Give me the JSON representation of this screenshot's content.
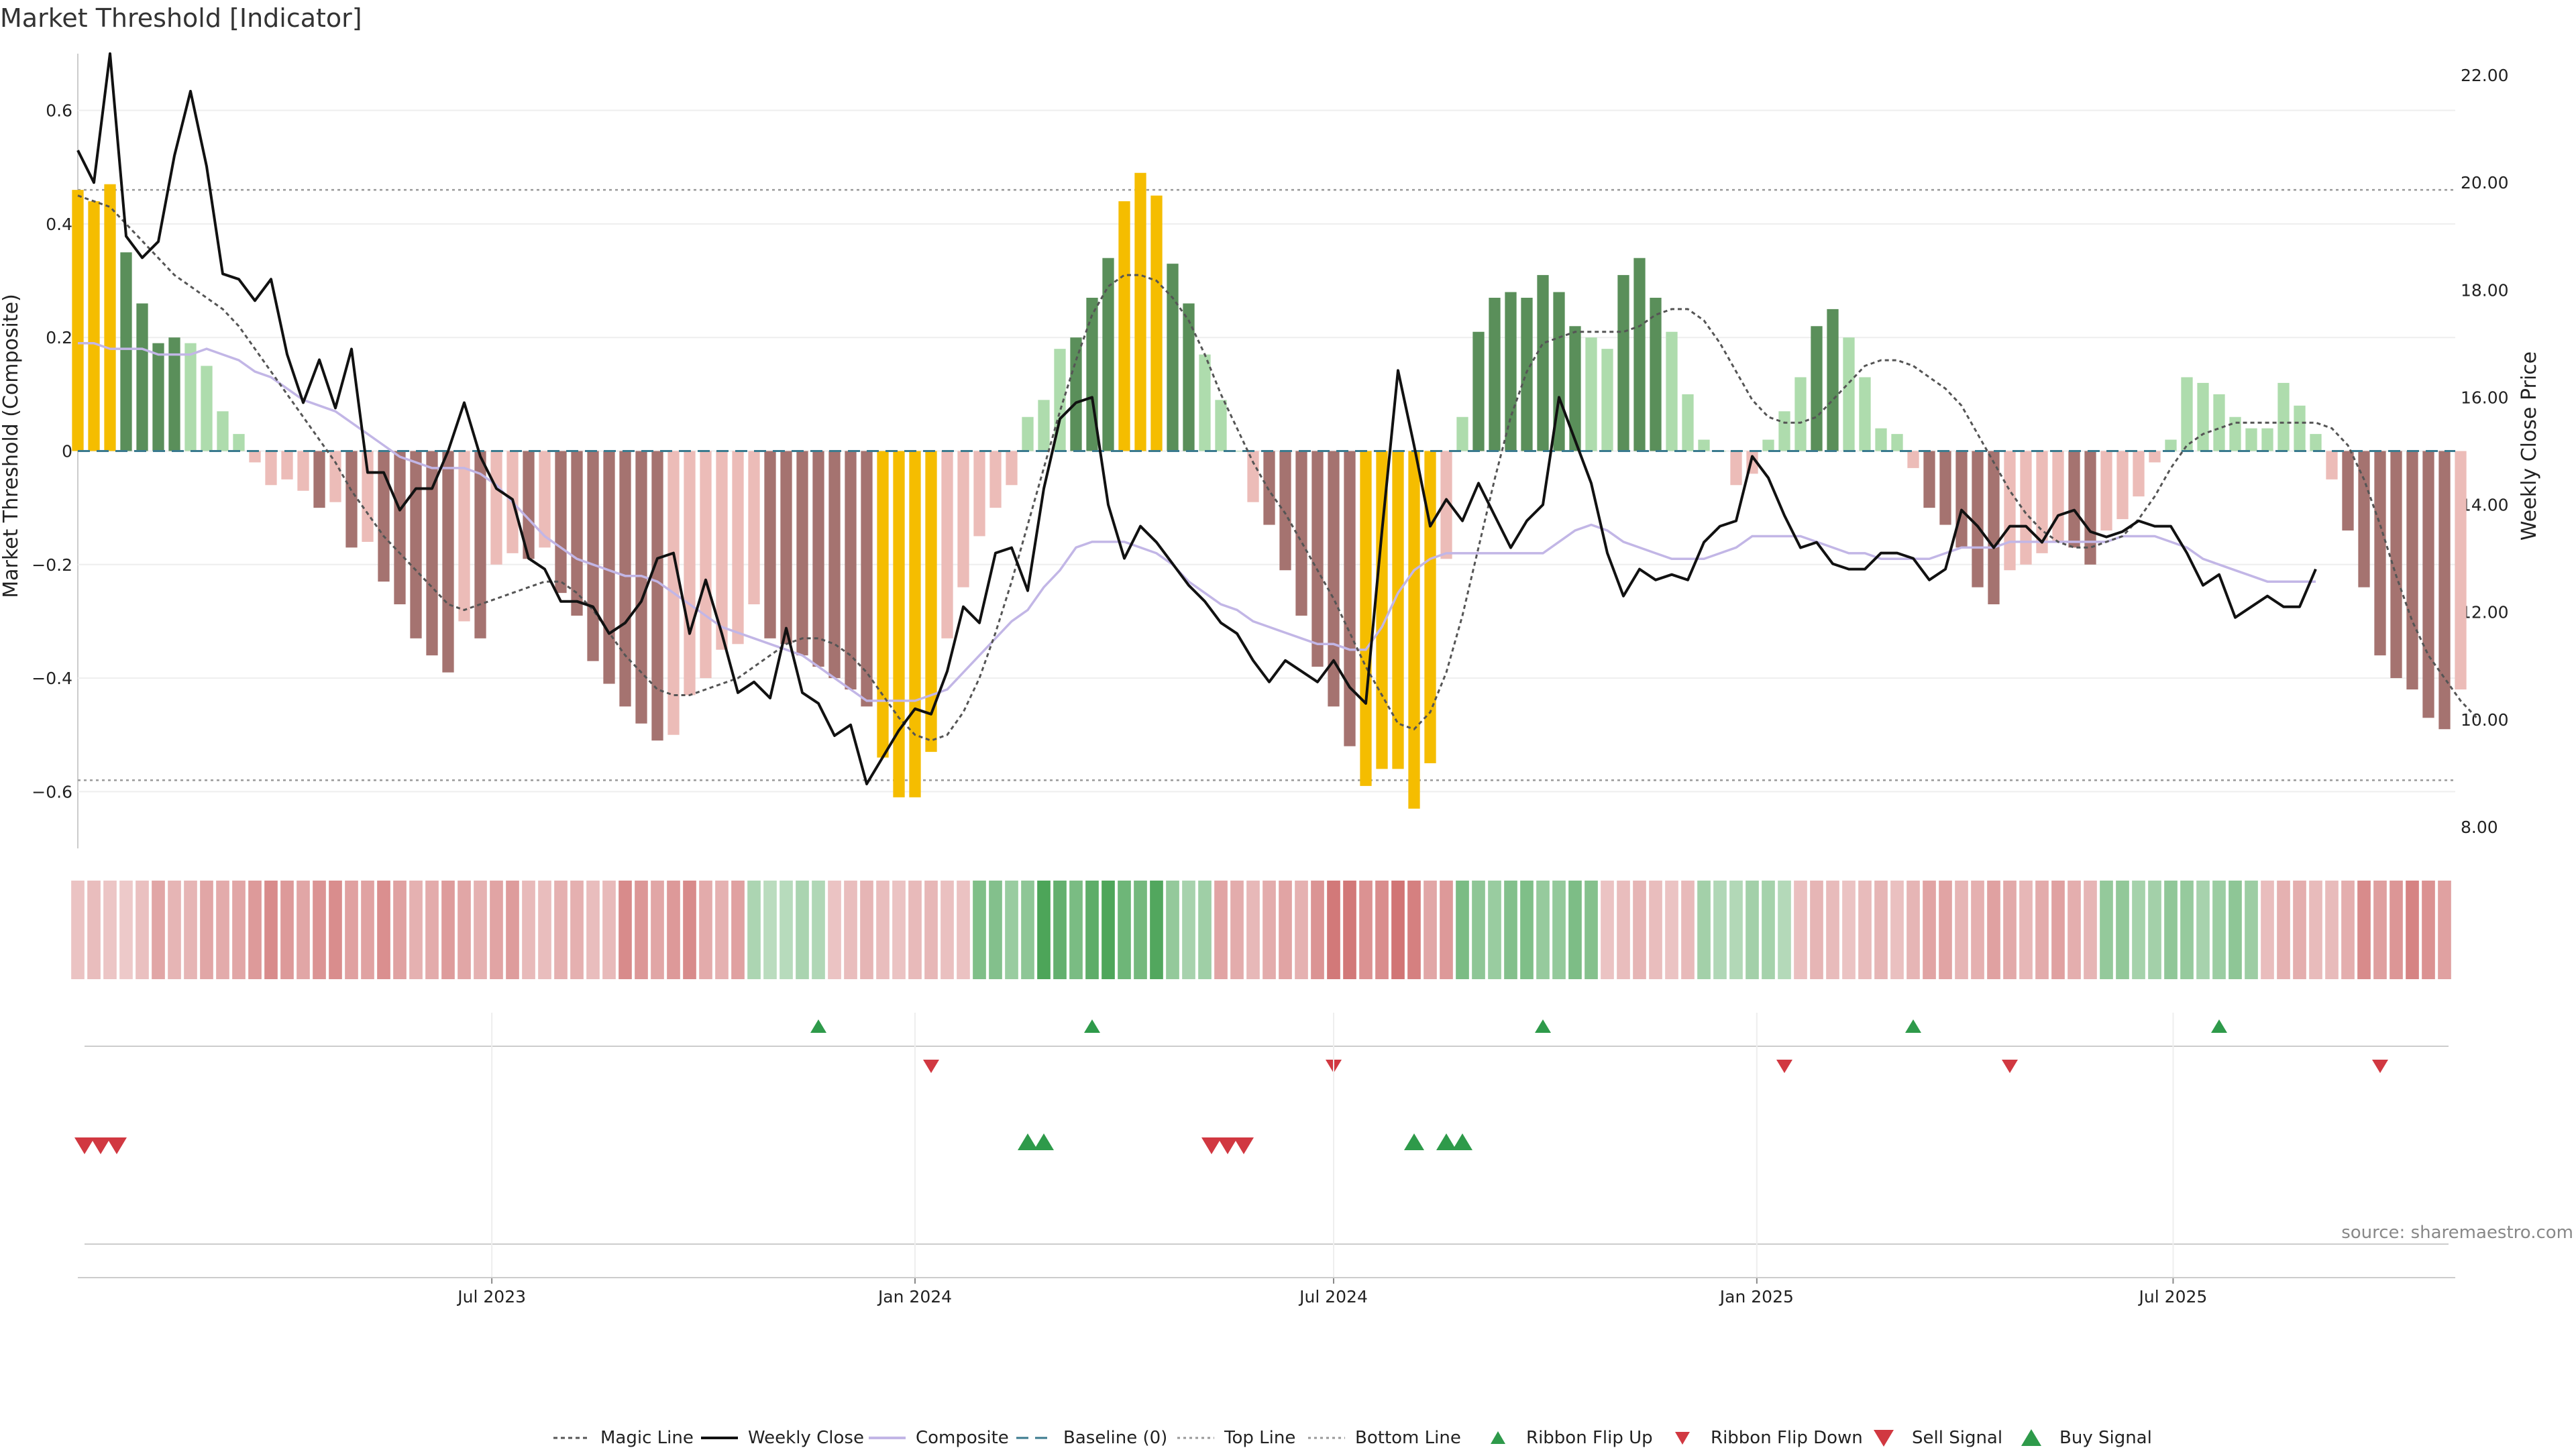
{
  "chart_data": {
    "type": "bar",
    "title": "Market Threshold [Indicator]",
    "ylabel_left": "Market Threshold (Composite)",
    "ylabel_right": "Weekly Close Price",
    "source": "source: sharemaestro.com",
    "x_range": [
      "2023-01-02",
      "2025-11-03"
    ],
    "x_ticks": [
      {
        "date": "2023-07-01",
        "label": "Jul 2023"
      },
      {
        "date": "2024-01-01",
        "label": "Jan 2024"
      },
      {
        "date": "2024-07-01",
        "label": "Jul 2024"
      },
      {
        "date": "2025-01-01",
        "label": "Jan 2025"
      },
      {
        "date": "2025-07-01",
        "label": "Jul 2025"
      }
    ],
    "y_left": {
      "range": [
        -0.7,
        0.7
      ],
      "ticks": [
        -0.6,
        -0.4,
        -0.2,
        0,
        0.2,
        0.4,
        0.6
      ],
      "tick_labels": [
        "−0.6",
        "−0.4",
        "−0.2",
        "0",
        "0.2",
        "0.4",
        "0.6"
      ]
    },
    "y_right": {
      "range": [
        7.6,
        22.4
      ],
      "ticks": [
        8,
        10,
        12,
        14,
        16,
        18,
        20,
        22
      ],
      "tick_labels": [
        "8.00",
        "10.00",
        "12.00",
        "14.00",
        "16.00",
        "18.00",
        "20.00",
        "22.00"
      ]
    },
    "top_line": 0.46,
    "bottom_line": -0.58,
    "baseline": 0,
    "colors": {
      "strong_positive": "#5a8f5a",
      "weak_positive": "#aedcad",
      "strong_negative": "#a57370",
      "weak_negative": "#ecbcb8",
      "extreme": "#f5bd00",
      "weekly_close": "#111111",
      "composite": "#c2b6e6",
      "magic_line": "#555555",
      "baseline": "#3a7a8e",
      "threshold": "#999999",
      "buy": "#2e9a4a",
      "sell": "#d13841"
    },
    "weekly_close": [
      20.6,
      20.0,
      22.4,
      19.0,
      18.6,
      18.9,
      20.5,
      21.7,
      20.3,
      18.3,
      18.2,
      17.8,
      18.2,
      16.8,
      15.9,
      16.7,
      15.8,
      16.9,
      14.6,
      14.6,
      13.9,
      14.3,
      14.3,
      15.0,
      15.9,
      14.9,
      14.3,
      14.1,
      13.0,
      12.8,
      12.2,
      12.2,
      12.1,
      11.6,
      11.8,
      12.2,
      13.0,
      13.1,
      11.6,
      12.6,
      11.6,
      10.5,
      10.7,
      10.4,
      11.7,
      10.5,
      10.3,
      9.7,
      9.9,
      8.8,
      9.3,
      9.8,
      10.2,
      10.1,
      10.9,
      12.1,
      11.8,
      13.1,
      13.2,
      12.4,
      14.3,
      15.6,
      15.9,
      16.0,
      14.0,
      13.0,
      13.6,
      13.3,
      12.9,
      12.5,
      12.2,
      11.8,
      11.6,
      11.1,
      10.7,
      11.1,
      10.9,
      10.7,
      11.1,
      10.6,
      10.3,
      13.5,
      16.5,
      15.1,
      13.6,
      14.1,
      13.7,
      14.4,
      13.8,
      13.2,
      13.7,
      14.0,
      16.0,
      15.2,
      14.4,
      13.1,
      12.3,
      12.8,
      12.6,
      12.7,
      12.6,
      13.3,
      13.6,
      13.7,
      14.9,
      14.5,
      13.8,
      13.2,
      13.3,
      12.9,
      12.8,
      12.8,
      13.1,
      13.1,
      13.0,
      12.6,
      12.8,
      13.9,
      13.6,
      13.2,
      13.6,
      13.6,
      13.3,
      13.8,
      13.9,
      13.5,
      13.4,
      13.5,
      13.7,
      13.6,
      13.6,
      13.1,
      12.5,
      12.7,
      11.9,
      12.1,
      12.3,
      12.1,
      12.1,
      12.8
    ],
    "composite": [
      0.19,
      0.19,
      0.18,
      0.18,
      0.18,
      0.17,
      0.17,
      0.17,
      0.18,
      0.17,
      0.16,
      0.14,
      0.13,
      0.11,
      0.09,
      0.08,
      0.07,
      0.05,
      0.03,
      0.01,
      -0.01,
      -0.02,
      -0.03,
      -0.03,
      -0.03,
      -0.04,
      -0.06,
      -0.09,
      -0.12,
      -0.15,
      -0.17,
      -0.19,
      -0.2,
      -0.21,
      -0.22,
      -0.22,
      -0.23,
      -0.25,
      -0.27,
      -0.29,
      -0.31,
      -0.32,
      -0.33,
      -0.34,
      -0.35,
      -0.36,
      -0.38,
      -0.4,
      -0.42,
      -0.44,
      -0.44,
      -0.44,
      -0.44,
      -0.43,
      -0.42,
      -0.39,
      -0.36,
      -0.33,
      -0.3,
      -0.28,
      -0.24,
      -0.21,
      -0.17,
      -0.16,
      -0.16,
      -0.16,
      -0.17,
      -0.18,
      -0.2,
      -0.23,
      -0.25,
      -0.27,
      -0.28,
      -0.3,
      -0.31,
      -0.32,
      -0.33,
      -0.34,
      -0.34,
      -0.35,
      -0.35,
      -0.31,
      -0.25,
      -0.21,
      -0.19,
      -0.18,
      -0.18,
      -0.18,
      -0.18,
      -0.18,
      -0.18,
      -0.18,
      -0.16,
      -0.14,
      -0.13,
      -0.14,
      -0.16,
      -0.17,
      -0.18,
      -0.19,
      -0.19,
      -0.19,
      -0.18,
      -0.17,
      -0.15,
      -0.15,
      -0.15,
      -0.15,
      -0.16,
      -0.17,
      -0.18,
      -0.18,
      -0.19,
      -0.19,
      -0.19,
      -0.19,
      -0.18,
      -0.17,
      -0.17,
      -0.17,
      -0.16,
      -0.16,
      -0.16,
      -0.16,
      -0.16,
      -0.16,
      -0.16,
      -0.15,
      -0.15,
      -0.15,
      -0.16,
      -0.17,
      -0.19,
      -0.2,
      -0.21,
      -0.22,
      -0.23,
      -0.23,
      -0.23,
      -0.23
    ],
    "magic_line": [
      0.45,
      0.44,
      0.43,
      0.4,
      0.37,
      0.34,
      0.31,
      0.29,
      0.27,
      0.25,
      0.22,
      0.18,
      0.14,
      0.1,
      0.06,
      0.02,
      -0.02,
      -0.07,
      -0.11,
      -0.15,
      -0.18,
      -0.21,
      -0.24,
      -0.27,
      -0.28,
      -0.27,
      -0.26,
      -0.25,
      -0.24,
      -0.23,
      -0.23,
      -0.25,
      -0.28,
      -0.32,
      -0.36,
      -0.39,
      -0.42,
      -0.43,
      -0.43,
      -0.42,
      -0.41,
      -0.4,
      -0.38,
      -0.36,
      -0.34,
      -0.33,
      -0.33,
      -0.34,
      -0.36,
      -0.39,
      -0.43,
      -0.47,
      -0.5,
      -0.51,
      -0.5,
      -0.46,
      -0.4,
      -0.32,
      -0.23,
      -0.13,
      -0.03,
      0.07,
      0.16,
      0.24,
      0.29,
      0.31,
      0.31,
      0.3,
      0.27,
      0.23,
      0.17,
      0.1,
      0.04,
      -0.02,
      -0.07,
      -0.11,
      -0.16,
      -0.21,
      -0.26,
      -0.32,
      -0.38,
      -0.43,
      -0.48,
      -0.49,
      -0.46,
      -0.39,
      -0.29,
      -0.17,
      -0.05,
      0.06,
      0.14,
      0.19,
      0.2,
      0.21,
      0.21,
      0.21,
      0.21,
      0.22,
      0.24,
      0.25,
      0.25,
      0.23,
      0.19,
      0.14,
      0.09,
      0.06,
      0.05,
      0.05,
      0.06,
      0.09,
      0.12,
      0.15,
      0.16,
      0.16,
      0.15,
      0.13,
      0.11,
      0.08,
      0.03,
      -0.02,
      -0.07,
      -0.11,
      -0.14,
      -0.16,
      -0.17,
      -0.17,
      -0.16,
      -0.15,
      -0.12,
      -0.08,
      -0.03,
      0.01,
      0.03,
      0.04,
      0.05,
      0.05,
      0.05,
      0.05,
      0.05,
      0.05,
      0.04,
      0.01,
      -0.05,
      -0.13,
      -0.22,
      -0.3,
      -0.36,
      -0.4,
      -0.44,
      -0.47
    ],
    "bars": [
      0.46,
      0.44,
      0.47,
      0.35,
      0.26,
      0.19,
      0.2,
      0.19,
      0.15,
      0.07,
      0.03,
      -0.02,
      -0.06,
      -0.05,
      -0.07,
      -0.1,
      -0.09,
      -0.17,
      -0.16,
      -0.23,
      -0.27,
      -0.33,
      -0.36,
      -0.39,
      -0.3,
      -0.33,
      -0.2,
      -0.18,
      -0.19,
      -0.17,
      -0.25,
      -0.29,
      -0.37,
      -0.41,
      -0.45,
      -0.48,
      -0.51,
      -0.5,
      -0.43,
      -0.4,
      -0.35,
      -0.34,
      -0.27,
      -0.33,
      -0.34,
      -0.36,
      -0.38,
      -0.4,
      -0.42,
      -0.45,
      -0.54,
      -0.61,
      -0.61,
      -0.53,
      -0.33,
      -0.24,
      -0.15,
      -0.1,
      -0.06,
      0.06,
      0.09,
      0.18,
      0.2,
      0.27,
      0.34,
      0.44,
      0.49,
      0.45,
      0.33,
      0.26,
      0.17,
      0.09,
      0.0,
      -0.09,
      -0.13,
      -0.21,
      -0.29,
      -0.38,
      -0.45,
      -0.52,
      -0.59,
      -0.56,
      -0.56,
      -0.63,
      -0.55,
      -0.19,
      0.06,
      0.21,
      0.27,
      0.28,
      0.27,
      0.31,
      0.28,
      0.22,
      0.2,
      0.18,
      0.31,
      0.34,
      0.27,
      0.21,
      0.1,
      0.02,
      0.0,
      -0.06,
      -0.04,
      0.02,
      0.07,
      0.13,
      0.22,
      0.25,
      0.2,
      0.13,
      0.04,
      0.03,
      -0.03,
      -0.1,
      -0.13,
      -0.17,
      -0.24,
      -0.27,
      -0.21,
      -0.2,
      -0.18,
      -0.16,
      -0.17,
      -0.2,
      -0.14,
      -0.12,
      -0.08,
      -0.02,
      0.02,
      0.13,
      0.12,
      0.1,
      0.06,
      0.04,
      0.04,
      0.12,
      0.08,
      0.03,
      -0.05,
      -0.14,
      -0.24,
      -0.36,
      -0.4,
      -0.42,
      -0.47,
      -0.49,
      -0.42
    ],
    "ribbon": {
      "segment_columns": [
        [
          0,
          5,
          "neg",
          0.25
        ],
        [
          5,
          10,
          "neg",
          0.4
        ],
        [
          10,
          20,
          "neg",
          0.55
        ],
        [
          20,
          28,
          "neg",
          0.45
        ],
        [
          28,
          34,
          "neg",
          0.35
        ],
        [
          34,
          39,
          "neg",
          0.55
        ],
        [
          39,
          42,
          "neg",
          0.45
        ],
        [
          42,
          47,
          "pos",
          0.3
        ],
        [
          47,
          56,
          "neg",
          0.3
        ],
        [
          56,
          60,
          "pos",
          0.55
        ],
        [
          60,
          68,
          "pos",
          0.8
        ],
        [
          68,
          71,
          "pos",
          0.45
        ],
        [
          71,
          77,
          "neg",
          0.4
        ],
        [
          77,
          84,
          "neg",
          0.7
        ],
        [
          84,
          86,
          "neg",
          0.55
        ],
        [
          86,
          95,
          "pos",
          0.55
        ],
        [
          95,
          101,
          "neg",
          0.3
        ],
        [
          101,
          107,
          "pos",
          0.35
        ],
        [
          107,
          114,
          "neg",
          0.3
        ],
        [
          114,
          126,
          "neg",
          0.42
        ],
        [
          126,
          136,
          "pos",
          0.45
        ],
        [
          136,
          142,
          "neg",
          0.35
        ],
        [
          142,
          148,
          "neg",
          0.6
        ]
      ]
    },
    "ribbon_flip_up": [
      "2023-11-20",
      "2024-03-18",
      "2024-09-30",
      "2025-03-10",
      "2025-07-21"
    ],
    "ribbon_flip_down": [
      "2024-01-08",
      "2024-07-01",
      "2025-01-13",
      "2025-04-21",
      "2025-09-29"
    ],
    "sell_signal": [
      "2023-01-02",
      "2023-01-09",
      "2023-01-16",
      "2024-05-06",
      "2024-05-13",
      "2024-05-20"
    ],
    "buy_signal": [
      "2024-02-19",
      "2024-02-26",
      "2024-08-05",
      "2024-08-19",
      "2024-08-26"
    ],
    "legend": [
      {
        "label": "Magic Line",
        "kind": "dotted-line"
      },
      {
        "label": "Weekly Close",
        "kind": "line"
      },
      {
        "label": "Composite",
        "kind": "line-light"
      },
      {
        "label": "Baseline (0)",
        "kind": "dashed-line"
      },
      {
        "label": "Top Line",
        "kind": "dotted-gray"
      },
      {
        "label": "Bottom Line",
        "kind": "dotted-gray"
      },
      {
        "label": "Ribbon Flip Up",
        "kind": "tri-up-small"
      },
      {
        "label": "Ribbon Flip Down",
        "kind": "tri-down-small"
      },
      {
        "label": "Sell Signal",
        "kind": "tri-down"
      },
      {
        "label": "Buy Signal",
        "kind": "tri-up"
      }
    ]
  }
}
